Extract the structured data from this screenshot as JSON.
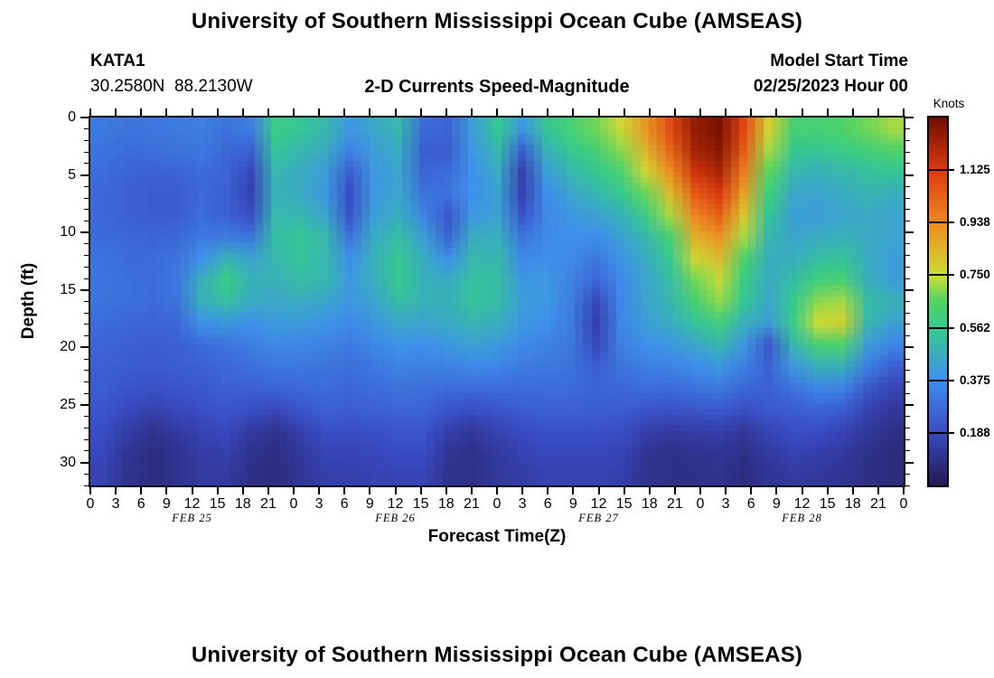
{
  "header": {
    "title": "University of Southern Mississippi Ocean Cube (AMSEAS)",
    "station_id": "KATA1",
    "location": "30.2580N  88.2130W",
    "subtitle": "2-D Currents Speed-Magnitude",
    "model_start_label": "Model Start Time",
    "model_start_value": "02/25/2023 Hour 00"
  },
  "footer": {
    "next_panel_title": "University of Southern Mississippi Ocean Cube (AMSEAS)"
  },
  "chart_data": {
    "type": "heatmap",
    "title": "2-D Currents Speed-Magnitude",
    "xlabel": "Forecast Time(Z)",
    "ylabel": "Depth (ft)",
    "x_range_hours": [
      0,
      96
    ],
    "y_range_ft": [
      0,
      32
    ],
    "x_tick_labels": [
      "0",
      "3",
      "6",
      "9",
      "12",
      "15",
      "18",
      "21",
      "0",
      "3",
      "6",
      "9",
      "12",
      "15",
      "18",
      "21",
      "0",
      "3",
      "6",
      "9",
      "12",
      "15",
      "18",
      "21",
      "0",
      "3",
      "6",
      "9",
      "12",
      "15",
      "18",
      "21",
      "0"
    ],
    "x_day_labels": [
      "FEB 25",
      "FEB 26",
      "FEB 27",
      "FEB 28"
    ],
    "y_tick_values": [
      0,
      5,
      10,
      15,
      20,
      25,
      30
    ],
    "forecast_hours": [
      0,
      3,
      6,
      9,
      12,
      15,
      18,
      21,
      24,
      27,
      30,
      33,
      36,
      39,
      42,
      45,
      48,
      51,
      54,
      57,
      60,
      63,
      66,
      69,
      72,
      75,
      78,
      81,
      84,
      87,
      90,
      93,
      96
    ],
    "depths_ft": [
      0,
      2,
      4,
      6,
      8,
      10,
      12,
      14,
      16,
      18,
      20,
      22,
      24,
      26,
      28,
      30,
      32
    ],
    "values_knots": [
      [
        0.32,
        0.3,
        0.31,
        0.32,
        0.33,
        0.3,
        0.33,
        0.58,
        0.55,
        0.5,
        0.4,
        0.45,
        0.5,
        0.28,
        0.26,
        0.42,
        0.55,
        0.4,
        0.55,
        0.62,
        0.68,
        0.76,
        0.9,
        1.08,
        1.25,
        1.29,
        1.1,
        0.78,
        0.62,
        0.62,
        0.64,
        0.68,
        0.72
      ],
      [
        0.3,
        0.28,
        0.29,
        0.3,
        0.31,
        0.27,
        0.25,
        0.54,
        0.5,
        0.46,
        0.34,
        0.42,
        0.46,
        0.24,
        0.24,
        0.4,
        0.5,
        0.25,
        0.48,
        0.56,
        0.62,
        0.7,
        0.84,
        1.02,
        1.22,
        1.27,
        1.05,
        0.72,
        0.56,
        0.55,
        0.58,
        0.61,
        0.64
      ],
      [
        0.28,
        0.26,
        0.25,
        0.26,
        0.28,
        0.26,
        0.18,
        0.5,
        0.46,
        0.42,
        0.24,
        0.4,
        0.44,
        0.26,
        0.28,
        0.38,
        0.46,
        0.16,
        0.42,
        0.5,
        0.56,
        0.63,
        0.76,
        0.92,
        1.15,
        1.21,
        0.97,
        0.66,
        0.5,
        0.48,
        0.5,
        0.53,
        0.55
      ],
      [
        0.27,
        0.25,
        0.24,
        0.24,
        0.27,
        0.25,
        0.16,
        0.48,
        0.46,
        0.4,
        0.2,
        0.4,
        0.44,
        0.3,
        0.3,
        0.38,
        0.43,
        0.16,
        0.37,
        0.44,
        0.5,
        0.56,
        0.67,
        0.82,
        1.05,
        1.13,
        0.89,
        0.6,
        0.45,
        0.44,
        0.46,
        0.49,
        0.47
      ],
      [
        0.27,
        0.25,
        0.24,
        0.24,
        0.28,
        0.25,
        0.2,
        0.5,
        0.5,
        0.44,
        0.22,
        0.42,
        0.47,
        0.34,
        0.22,
        0.4,
        0.43,
        0.22,
        0.35,
        0.4,
        0.43,
        0.48,
        0.58,
        0.72,
        0.95,
        1.03,
        0.8,
        0.54,
        0.42,
        0.42,
        0.44,
        0.46,
        0.44
      ],
      [
        0.28,
        0.27,
        0.26,
        0.27,
        0.31,
        0.32,
        0.3,
        0.52,
        0.55,
        0.5,
        0.3,
        0.46,
        0.52,
        0.42,
        0.26,
        0.46,
        0.47,
        0.3,
        0.36,
        0.38,
        0.37,
        0.43,
        0.5,
        0.62,
        0.85,
        0.92,
        0.72,
        0.5,
        0.44,
        0.46,
        0.48,
        0.46,
        0.44
      ],
      [
        0.3,
        0.28,
        0.28,
        0.3,
        0.38,
        0.48,
        0.44,
        0.5,
        0.54,
        0.5,
        0.38,
        0.48,
        0.55,
        0.46,
        0.38,
        0.5,
        0.5,
        0.36,
        0.38,
        0.36,
        0.31,
        0.39,
        0.46,
        0.56,
        0.76,
        0.82,
        0.64,
        0.47,
        0.47,
        0.52,
        0.54,
        0.46,
        0.42
      ],
      [
        0.3,
        0.29,
        0.28,
        0.31,
        0.47,
        0.58,
        0.48,
        0.48,
        0.52,
        0.5,
        0.4,
        0.47,
        0.56,
        0.48,
        0.46,
        0.53,
        0.52,
        0.4,
        0.4,
        0.34,
        0.26,
        0.36,
        0.44,
        0.52,
        0.68,
        0.74,
        0.58,
        0.46,
        0.52,
        0.6,
        0.62,
        0.47,
        0.42
      ],
      [
        0.3,
        0.29,
        0.28,
        0.3,
        0.48,
        0.52,
        0.46,
        0.45,
        0.46,
        0.44,
        0.4,
        0.44,
        0.52,
        0.48,
        0.48,
        0.54,
        0.51,
        0.42,
        0.4,
        0.33,
        0.18,
        0.35,
        0.44,
        0.5,
        0.62,
        0.7,
        0.55,
        0.45,
        0.56,
        0.7,
        0.72,
        0.52,
        0.48
      ],
      [
        0.28,
        0.27,
        0.26,
        0.27,
        0.38,
        0.4,
        0.38,
        0.41,
        0.41,
        0.39,
        0.36,
        0.4,
        0.45,
        0.44,
        0.46,
        0.49,
        0.47,
        0.4,
        0.38,
        0.32,
        0.15,
        0.35,
        0.42,
        0.46,
        0.54,
        0.6,
        0.48,
        0.42,
        0.58,
        0.75,
        0.78,
        0.5,
        0.43
      ],
      [
        0.26,
        0.25,
        0.24,
        0.25,
        0.28,
        0.3,
        0.33,
        0.36,
        0.35,
        0.34,
        0.32,
        0.35,
        0.39,
        0.38,
        0.4,
        0.43,
        0.41,
        0.36,
        0.34,
        0.31,
        0.18,
        0.33,
        0.38,
        0.4,
        0.45,
        0.5,
        0.4,
        0.22,
        0.5,
        0.62,
        0.64,
        0.42,
        0.35
      ],
      [
        0.25,
        0.24,
        0.23,
        0.24,
        0.25,
        0.27,
        0.29,
        0.31,
        0.31,
        0.3,
        0.29,
        0.31,
        0.34,
        0.33,
        0.34,
        0.36,
        0.35,
        0.32,
        0.31,
        0.3,
        0.24,
        0.3,
        0.33,
        0.34,
        0.37,
        0.4,
        0.33,
        0.26,
        0.4,
        0.48,
        0.48,
        0.33,
        0.25
      ],
      [
        0.24,
        0.22,
        0.21,
        0.22,
        0.23,
        0.25,
        0.25,
        0.26,
        0.27,
        0.28,
        0.27,
        0.28,
        0.3,
        0.29,
        0.28,
        0.28,
        0.28,
        0.28,
        0.28,
        0.28,
        0.26,
        0.27,
        0.28,
        0.28,
        0.3,
        0.31,
        0.27,
        0.25,
        0.3,
        0.35,
        0.34,
        0.23,
        0.17
      ],
      [
        0.22,
        0.18,
        0.16,
        0.18,
        0.2,
        0.22,
        0.2,
        0.18,
        0.22,
        0.25,
        0.24,
        0.25,
        0.26,
        0.26,
        0.22,
        0.2,
        0.22,
        0.24,
        0.25,
        0.25,
        0.24,
        0.24,
        0.22,
        0.21,
        0.22,
        0.23,
        0.2,
        0.23,
        0.24,
        0.26,
        0.24,
        0.16,
        0.12
      ],
      [
        0.2,
        0.14,
        0.1,
        0.13,
        0.16,
        0.18,
        0.13,
        0.1,
        0.15,
        0.2,
        0.2,
        0.21,
        0.22,
        0.22,
        0.15,
        0.12,
        0.16,
        0.19,
        0.21,
        0.21,
        0.21,
        0.2,
        0.15,
        0.13,
        0.14,
        0.15,
        0.12,
        0.17,
        0.2,
        0.19,
        0.17,
        0.12,
        0.09
      ],
      [
        0.18,
        0.11,
        0.08,
        0.1,
        0.14,
        0.15,
        0.1,
        0.08,
        0.12,
        0.17,
        0.17,
        0.18,
        0.19,
        0.19,
        0.11,
        0.09,
        0.13,
        0.16,
        0.18,
        0.18,
        0.18,
        0.17,
        0.11,
        0.09,
        0.1,
        0.11,
        0.09,
        0.13,
        0.16,
        0.15,
        0.13,
        0.09,
        0.07
      ],
      [
        0.16,
        0.1,
        0.08,
        0.1,
        0.13,
        0.13,
        0.09,
        0.08,
        0.11,
        0.15,
        0.15,
        0.16,
        0.17,
        0.17,
        0.1,
        0.09,
        0.12,
        0.14,
        0.16,
        0.16,
        0.16,
        0.15,
        0.1,
        0.09,
        0.09,
        0.1,
        0.08,
        0.11,
        0.13,
        0.12,
        0.11,
        0.09,
        0.07
      ]
    ],
    "colorbar": {
      "label": "Knots",
      "min": 0,
      "max": 1.3125,
      "tick_values": [
        0.188,
        0.375,
        0.562,
        0.75,
        0.938,
        1.125
      ],
      "tick_labels": [
        "0.188",
        "0.375",
        "0.562",
        "0.750",
        "0.938",
        "1.125"
      ]
    },
    "colormap": [
      {
        "pos": 0.0,
        "color": "#231a52"
      },
      {
        "pos": 0.143,
        "color": "#3a4ac2"
      },
      {
        "pos": 0.286,
        "color": "#3f90ee"
      },
      {
        "pos": 0.429,
        "color": "#35cb8d"
      },
      {
        "pos": 0.5,
        "color": "#52d463"
      },
      {
        "pos": 0.571,
        "color": "#ccdc35"
      },
      {
        "pos": 0.714,
        "color": "#f08a22"
      },
      {
        "pos": 0.857,
        "color": "#dc3a10"
      },
      {
        "pos": 1.0,
        "color": "#6f0e00"
      }
    ],
    "grid": false,
    "legend_position": "right-colorbar"
  }
}
